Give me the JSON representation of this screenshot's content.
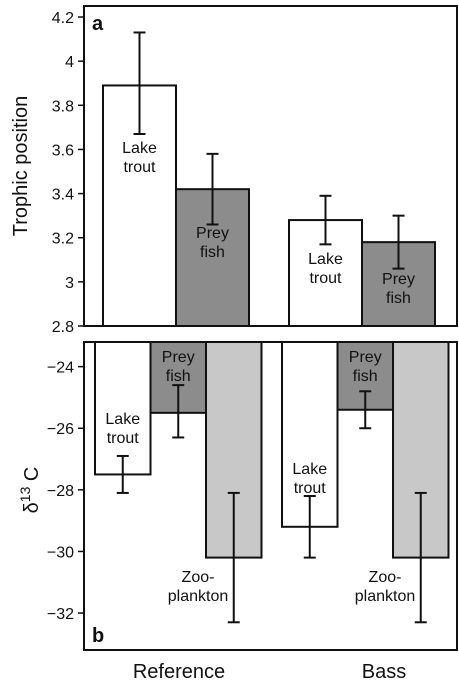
{
  "chart_data": [
    {
      "panel": "a",
      "type": "bar",
      "ylabel": "Trophic position",
      "ylim": [
        2.8,
        4.25
      ],
      "yticks": [
        "2.8",
        "3",
        "3.2",
        "3.4",
        "3.6",
        "3.8",
        "4",
        "4.2"
      ],
      "categories": [
        "Reference",
        "Bass"
      ],
      "series": [
        {
          "name": "Lake trout",
          "label_lines": [
            "Lake",
            "trout"
          ],
          "fill": "#ffffff",
          "values": [
            3.89,
            3.28
          ],
          "err_low": [
            3.67,
            3.17
          ],
          "err_high": [
            4.13,
            3.39
          ]
        },
        {
          "name": "Prey fish",
          "label_lines": [
            "Prey",
            "fish"
          ],
          "fill": "#8c8c8c",
          "values": [
            3.42,
            3.18
          ],
          "err_low": [
            3.26,
            3.06
          ],
          "err_high": [
            3.58,
            3.3
          ]
        }
      ]
    },
    {
      "panel": "b",
      "type": "bar",
      "ylabel": "δ13 C",
      "ylabel_main": "δ",
      "ylabel_sup": "13",
      "ylabel_tail": " C",
      "ylim": [
        -33.2,
        -23.2
      ],
      "yticks": [
        "−24",
        "−26",
        "−28",
        "−30",
        "−32"
      ],
      "categories": [
        "Reference",
        "Bass"
      ],
      "series": [
        {
          "name": "Lake trout",
          "label_lines": [
            "Lake",
            "trout"
          ],
          "fill": "#ffffff",
          "values": [
            -27.5,
            -29.2
          ],
          "err_low": [
            -28.1,
            -30.2
          ],
          "err_high": [
            -26.9,
            -28.2
          ]
        },
        {
          "name": "Prey fish",
          "label_lines": [
            "Prey",
            "fish"
          ],
          "fill": "#8c8c8c",
          "values": [
            -25.5,
            -25.4
          ],
          "err_low": [
            -26.3,
            -26.0
          ],
          "err_high": [
            -24.6,
            -24.8
          ]
        },
        {
          "name": "Zooplankton",
          "label_lines": [
            "Zoo-",
            "plankton"
          ],
          "fill": "#c8c8c8",
          "values": [
            -30.2,
            -30.2
          ],
          "err_low": [
            -32.3,
            -32.3
          ],
          "err_high": [
            -28.1,
            -28.1
          ]
        }
      ]
    }
  ]
}
